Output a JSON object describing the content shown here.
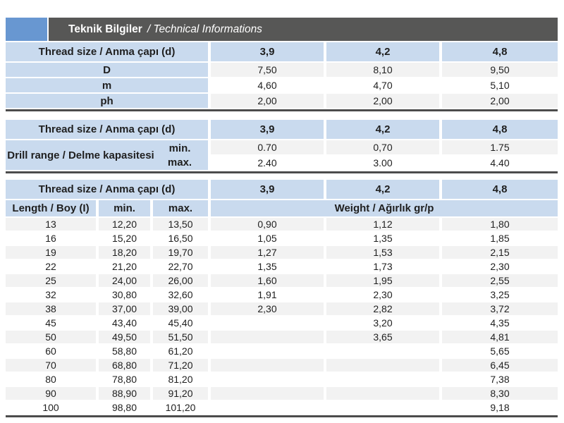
{
  "header": {
    "title_bold": "Teknik Bilgiler",
    "title_italic": "/ Technical Informations"
  },
  "colors": {
    "accent_blue": "#6897d1",
    "header_bar_dark": "#575756",
    "cell_blue": "#c9daee",
    "row_gray": "#f2f2f2",
    "row_white": "#ffffff",
    "separator_line": "#4c4c4c",
    "text": "#1f1f1f"
  },
  "thread_size_header": "Thread size / Anma çapı (d)",
  "thread_columns": [
    "3,9",
    "4,2",
    "4,8"
  ],
  "table1": {
    "rows": [
      {
        "label": "D",
        "values": [
          "7,50",
          "8,10",
          "9,50"
        ]
      },
      {
        "label": "m",
        "values": [
          "4,60",
          "4,70",
          "5,10"
        ]
      },
      {
        "label": "ph",
        "values": [
          "2,00",
          "2,00",
          "2,00"
        ]
      }
    ]
  },
  "table2": {
    "row_label": "Drill range / Delme kapasitesi",
    "min_label": "min.",
    "max_label": "max.",
    "min_values": [
      "0.70",
      "0,70",
      "1.75"
    ],
    "max_values": [
      "2.40",
      "3.00",
      "4.40"
    ]
  },
  "table3": {
    "length_header": "Length / Boy (I)",
    "min_header": "min.",
    "max_header": "max.",
    "weight_header": "Weight / Ağırlık gr/p",
    "rows": [
      {
        "length": "13",
        "min": "12,20",
        "max": "13,50",
        "weights": [
          "0,90",
          "1,12",
          "1,80"
        ]
      },
      {
        "length": "16",
        "min": "15,20",
        "max": "16,50",
        "weights": [
          "1,05",
          "1,35",
          "1,85"
        ]
      },
      {
        "length": "19",
        "min": "18,20",
        "max": "19,70",
        "weights": [
          "1,27",
          "1,53",
          "2,15"
        ]
      },
      {
        "length": "22",
        "min": "21,20",
        "max": "22,70",
        "weights": [
          "1,35",
          "1,73",
          "2,30"
        ]
      },
      {
        "length": "25",
        "min": "24,00",
        "max": "26,00",
        "weights": [
          "1,60",
          "1,95",
          "2,55"
        ]
      },
      {
        "length": "32",
        "min": "30,80",
        "max": "32,60",
        "weights": [
          "1,91",
          "2,30",
          "3,25"
        ]
      },
      {
        "length": "38",
        "min": "37,00",
        "max": "39,00",
        "weights": [
          "2,30",
          "2,82",
          "3,72"
        ]
      },
      {
        "length": "45",
        "min": "43,40",
        "max": "45,40",
        "weights": [
          "",
          "3,20",
          "4,35"
        ]
      },
      {
        "length": "50",
        "min": "49,50",
        "max": "51,50",
        "weights": [
          "",
          "3,65",
          "4,81"
        ]
      },
      {
        "length": "60",
        "min": "58,80",
        "max": "61,20",
        "weights": [
          "",
          "",
          "5,65"
        ]
      },
      {
        "length": "70",
        "min": "68,80",
        "max": "71,20",
        "weights": [
          "",
          "",
          "6,45"
        ]
      },
      {
        "length": "80",
        "min": "78,80",
        "max": "81,20",
        "weights": [
          "",
          "",
          "7,38"
        ]
      },
      {
        "length": "90",
        "min": "88,90",
        "max": "91,20",
        "weights": [
          "",
          "",
          "8,30"
        ]
      },
      {
        "length": "100",
        "min": "98,80",
        "max": "101,20",
        "weights": [
          "",
          "",
          "9,18"
        ]
      }
    ]
  }
}
